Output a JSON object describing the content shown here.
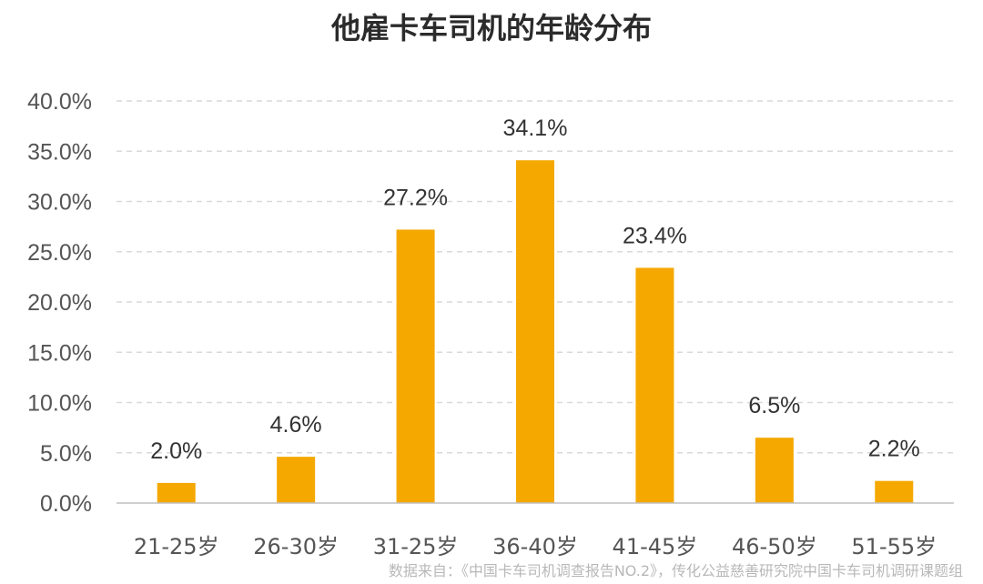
{
  "chart_data": {
    "type": "bar",
    "title": "他雇卡车司机的年龄分布",
    "categories": [
      "21-25岁",
      "26-30岁",
      "31-25岁",
      "36-40岁",
      "41-45岁",
      "46-50岁",
      "51-55岁"
    ],
    "values": [
      2.0,
      4.6,
      27.2,
      34.1,
      23.4,
      6.5,
      2.2
    ],
    "value_labels": [
      "2.0%",
      "4.6%",
      "27.2%",
      "34.1%",
      "23.4%",
      "6.5%",
      "2.2%"
    ],
    "yticks": [
      "0.0%",
      "5.0%",
      "10.0%",
      "15.0%",
      "20.0%",
      "25.0%",
      "30.0%",
      "35.0%",
      "40.0%"
    ],
    "ylim": [
      0,
      40
    ],
    "xlabel": "",
    "ylabel": "",
    "grid": true,
    "bar_color": "#f5a800",
    "source": "数据来自：《中国卡车司机调查报告NO.2》，传化公益慈善研究院中国卡车司机调研课题组"
  }
}
